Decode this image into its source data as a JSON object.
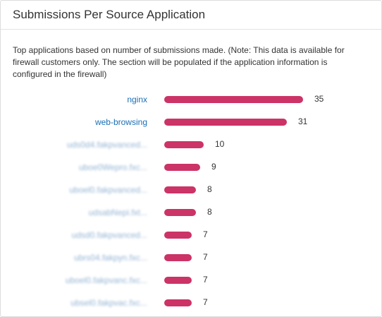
{
  "panel": {
    "title": "Submissions Per Source Application",
    "description": "Top applications based on number of submissions made. (Note: This data is available for firewall customers only. The section will be populated if the application information is configured in the firewall)"
  },
  "colors": {
    "bar": "#cc3366",
    "link": "#1a6fb5"
  },
  "chart_data": {
    "type": "bar",
    "orientation": "horizontal",
    "max": 35,
    "rows": [
      {
        "label": "nginx",
        "value": 35,
        "blurred": false
      },
      {
        "label": "web-browsing",
        "value": 31,
        "blurred": false
      },
      {
        "label": "uds0d4.fakpvanced...",
        "value": 10,
        "blurred": true
      },
      {
        "label": "uboe0Wepro.fxc...",
        "value": 9,
        "blurred": true
      },
      {
        "label": "uboel0.fakpvanced...",
        "value": 8,
        "blurred": true
      },
      {
        "label": "udsabNepi.fxt...",
        "value": 8,
        "blurred": true
      },
      {
        "label": "udsd0.fakpvanced...",
        "value": 7,
        "blurred": true
      },
      {
        "label": "ubrs04.fakpyn.fxc...",
        "value": 7,
        "blurred": true
      },
      {
        "label": "uboel0.fakpvanc.fxc...",
        "value": 7,
        "blurred": true
      },
      {
        "label": "ubsel0.fakpvac.fxc...",
        "value": 7,
        "blurred": true
      }
    ]
  }
}
